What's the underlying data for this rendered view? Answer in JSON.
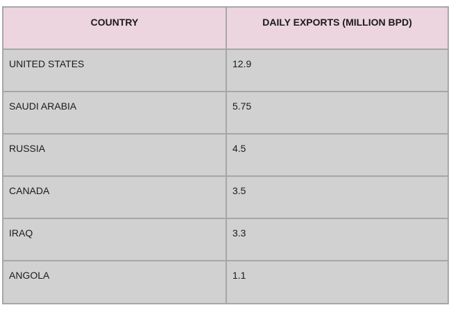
{
  "chart_data": {
    "type": "table",
    "columns": [
      "COUNTRY",
      "DAILY EXPORTS (MILLION BPD)"
    ],
    "rows": [
      {
        "country": "UNITED STATES",
        "value": "12.9"
      },
      {
        "country": "SAUDI ARABIA",
        "value": "5.75"
      },
      {
        "country": "RUSSIA",
        "value": "4.5"
      },
      {
        "country": "CANADA",
        "value": "3.5"
      },
      {
        "country": "IRAQ",
        "value": "3.3"
      },
      {
        "country": "ANGOLA",
        "value": "1.1"
      }
    ]
  },
  "colors": {
    "header_bg": "#ecd5de",
    "cell_bg": "#d1d1d1",
    "border": "#a6a6a6"
  }
}
